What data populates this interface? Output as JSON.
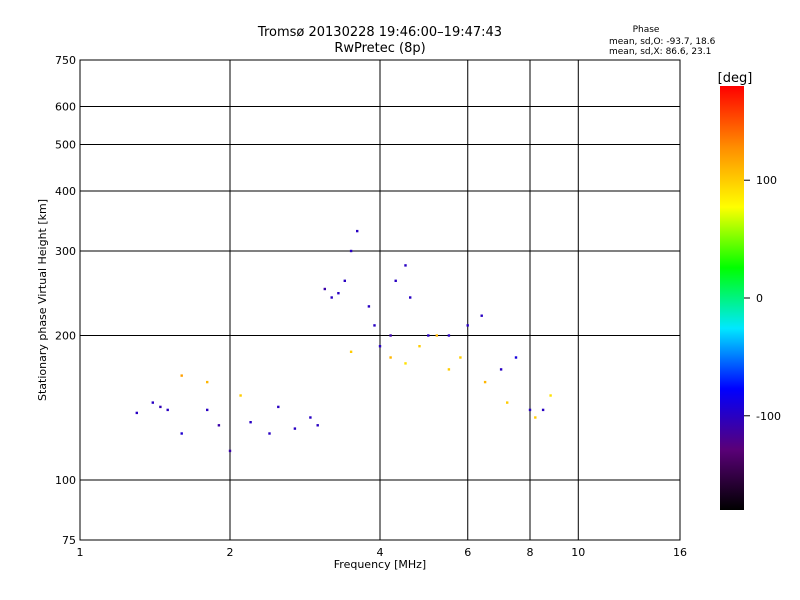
{
  "chart_data": {
    "type": "scatter",
    "title": "Tromsø 20130228 19:46:00–19:47:43",
    "subtitle": "RwPretec (8p)",
    "xlabel": "Frequency [MHz]",
    "ylabel": "Stationary phase Virtual Height [km]",
    "x_scale": "log",
    "y_scale": "log",
    "xlim": [
      1,
      16
    ],
    "ylim": [
      75,
      750
    ],
    "x_ticks": [
      1,
      2,
      4,
      6,
      8,
      10,
      16
    ],
    "y_ticks": [
      75,
      100,
      200,
      300,
      400,
      500,
      600,
      750
    ],
    "grid": true,
    "phase_box": {
      "title": "Phase",
      "line1": "mean, sd,O: -93.7, 18.6",
      "line2": "mean, sd,X:  86.6, 23.1"
    },
    "colorbar": {
      "label": "[deg]",
      "ticks": [
        100,
        0,
        -100
      ],
      "range": [
        -180,
        180
      ],
      "colors": [
        "#000000",
        "#5a0078",
        "#0000ff",
        "#00e8ff",
        "#00ff00",
        "#ffff00",
        "#ff8c00",
        "#ff0000"
      ]
    },
    "series": [
      {
        "points": [
          [
            1.3,
            138,
            -100
          ],
          [
            1.4,
            145,
            -100
          ],
          [
            1.45,
            142,
            -105
          ],
          [
            1.5,
            140,
            -100
          ],
          [
            1.6,
            125,
            -95
          ],
          [
            1.8,
            140,
            -100
          ],
          [
            1.9,
            130,
            -110
          ],
          [
            2.0,
            115,
            -110
          ],
          [
            2.2,
            132,
            -100
          ],
          [
            2.4,
            125,
            -100
          ],
          [
            2.5,
            142,
            -100
          ],
          [
            2.7,
            128,
            -100
          ],
          [
            2.9,
            135,
            -100
          ],
          [
            3.0,
            130,
            -100
          ],
          [
            3.1,
            250,
            -110
          ],
          [
            3.2,
            240,
            -100
          ],
          [
            3.3,
            245,
            -100
          ],
          [
            3.4,
            260,
            -100
          ],
          [
            3.5,
            300,
            -100
          ],
          [
            3.6,
            330,
            -100
          ],
          [
            3.8,
            230,
            -100
          ],
          [
            3.9,
            210,
            -100
          ],
          [
            4.0,
            190,
            -100
          ],
          [
            4.2,
            200,
            -110
          ],
          [
            4.3,
            260,
            -100
          ],
          [
            4.5,
            280,
            -100
          ],
          [
            4.6,
            240,
            -100
          ],
          [
            5.0,
            200,
            -100
          ],
          [
            5.5,
            200,
            -100
          ],
          [
            6.0,
            210,
            -100
          ],
          [
            6.4,
            220,
            -100
          ],
          [
            7.0,
            170,
            -100
          ],
          [
            7.5,
            180,
            -90
          ],
          [
            8.0,
            140,
            -100
          ],
          [
            8.5,
            140,
            -100
          ]
        ]
      },
      {
        "points": [
          [
            1.6,
            165,
            120
          ],
          [
            1.8,
            160,
            110
          ],
          [
            2.1,
            150,
            100
          ],
          [
            3.5,
            185,
            100
          ],
          [
            4.2,
            180,
            110
          ],
          [
            4.5,
            175,
            90
          ],
          [
            4.8,
            190,
            100
          ],
          [
            5.2,
            200,
            110
          ],
          [
            5.5,
            170,
            100
          ],
          [
            5.8,
            180,
            100
          ],
          [
            6.5,
            160,
            110
          ],
          [
            7.2,
            145,
            100
          ],
          [
            8.2,
            135,
            100
          ],
          [
            8.8,
            150,
            90
          ]
        ]
      }
    ]
  }
}
